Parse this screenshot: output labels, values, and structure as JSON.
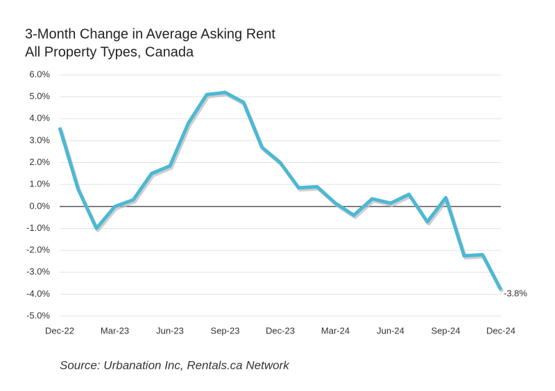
{
  "chart_data": {
    "type": "line",
    "title": "3-Month Change in Average Asking Rent",
    "subtitle": "All Property Types, Canada",
    "source": "Source: Urbanation Inc, Rentals.ca Network",
    "categories": [
      "Dec-22",
      null,
      null,
      "Mar-23",
      null,
      null,
      "Jun-23",
      null,
      null,
      "Sep-23",
      null,
      null,
      "Dec-23",
      null,
      null,
      "Mar-24",
      null,
      null,
      "Jun-24",
      null,
      null,
      "Sep-24",
      null,
      null,
      "Dec-24"
    ],
    "series": [
      {
        "name": "3-Month Change",
        "color": "#4bb8d4",
        "values": [
          3.6,
          0.8,
          -1.0,
          0.0,
          0.3,
          1.5,
          1.85,
          3.8,
          5.1,
          5.2,
          4.75,
          2.7,
          2.0,
          0.85,
          0.9,
          0.15,
          -0.4,
          0.35,
          0.15,
          0.55,
          -0.7,
          0.4,
          -2.25,
          -2.2,
          -3.8
        ],
        "value_labels": {
          "24": "-3.8%"
        }
      }
    ],
    "ylim": [
      -5.0,
      6.0
    ],
    "yticks": [
      {
        "value": -5.0,
        "label": "-5.0%"
      },
      {
        "value": -4.0,
        "label": "-4.0%"
      },
      {
        "value": -3.0,
        "label": "-3.0%"
      },
      {
        "value": -2.0,
        "label": "-2.0%"
      },
      {
        "value": -1.0,
        "label": "-1.0%"
      },
      {
        "value": 0.0,
        "label": "0.0%"
      },
      {
        "value": 1.0,
        "label": "1.0%"
      },
      {
        "value": 2.0,
        "label": "2.0%"
      },
      {
        "value": 3.0,
        "label": "3.0%"
      },
      {
        "value": 4.0,
        "label": "4.0%"
      },
      {
        "value": 5.0,
        "label": "5.0%"
      },
      {
        "value": 6.0,
        "label": "6.0%"
      }
    ],
    "grid": true
  }
}
